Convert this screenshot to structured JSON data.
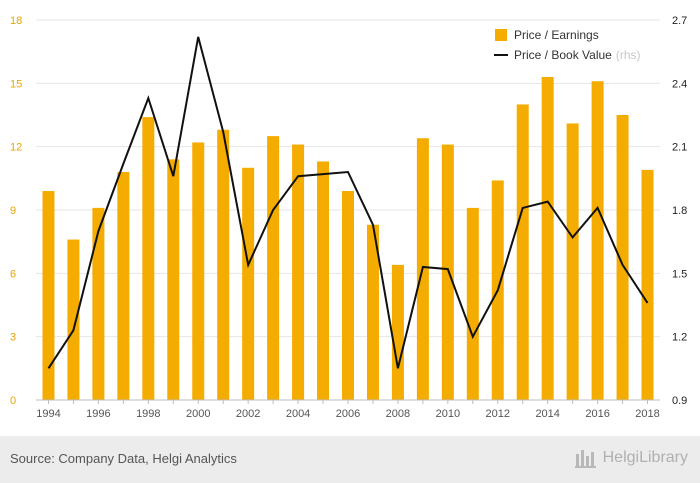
{
  "chart_data": {
    "type": "bar+line",
    "categories": [
      "1994",
      "1995",
      "1996",
      "1997",
      "1998",
      "1999",
      "2000",
      "2001",
      "2002",
      "2003",
      "2004",
      "2005",
      "2006",
      "2007",
      "2008",
      "2009",
      "2010",
      "2011",
      "2012",
      "2013",
      "2014",
      "2015",
      "2016",
      "2017",
      "2018"
    ],
    "x_tick_labels": [
      "1994",
      "1996",
      "1998",
      "2000",
      "2002",
      "2004",
      "2006",
      "2008",
      "2010",
      "2012",
      "2014",
      "2016",
      "2018"
    ],
    "series": [
      {
        "name": "Price / Earnings",
        "type": "bar",
        "axis": "left",
        "color": "#f5ac00",
        "values": [
          9.9,
          7.6,
          9.1,
          10.8,
          13.4,
          11.4,
          12.2,
          12.8,
          11.0,
          12.5,
          12.1,
          11.3,
          9.9,
          8.3,
          6.4,
          12.4,
          12.1,
          9.1,
          10.4,
          14.0,
          15.3,
          13.1,
          15.1,
          13.5,
          10.9
        ]
      },
      {
        "name": "Price / Book Value",
        "type": "line",
        "axis": "right",
        "color": "#111111",
        "values": [
          1.05,
          1.23,
          1.7,
          2.02,
          2.33,
          1.96,
          2.62,
          2.17,
          1.54,
          1.8,
          1.96,
          1.97,
          1.98,
          1.73,
          1.05,
          1.53,
          1.52,
          1.2,
          1.42,
          1.81,
          1.84,
          1.67,
          1.81,
          1.54,
          1.36
        ]
      }
    ],
    "legend_note": "(rhs)",
    "ylim_left": [
      0,
      18
    ],
    "yticks_left": [
      "0",
      "3",
      "6",
      "9",
      "12",
      "15",
      "18"
    ],
    "ylim_right": [
      0.9,
      2.7
    ],
    "yticks_right": [
      "0.9",
      "1.2",
      "1.5",
      "1.8",
      "2.1",
      "2.4",
      "2.7"
    ],
    "grid": true,
    "legend_position": "top-right"
  },
  "footer": {
    "source": "Source: Company Data, Helgi Analytics",
    "brand": "HelgiLibrary"
  },
  "colors": {
    "bar": "#f5ac00",
    "line": "#111111",
    "grid": "#e6e6e6",
    "footer_bg": "#ececec"
  }
}
